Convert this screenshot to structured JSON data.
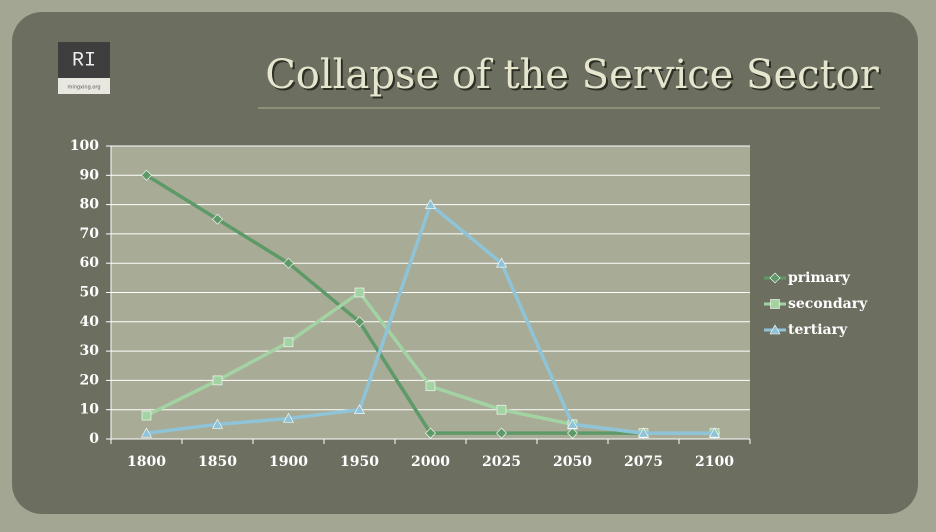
{
  "logo": {
    "mark": "RI",
    "caption": "mingxing.org"
  },
  "chart_data": {
    "type": "line",
    "title": "Collapse of the Service Sector",
    "categories": [
      "1800",
      "1850",
      "1900",
      "1950",
      "2000",
      "2025",
      "2050",
      "2075",
      "2100"
    ],
    "series": [
      {
        "name": "primary",
        "color": "#5e9a68",
        "marker": "diamond",
        "values": [
          90,
          75,
          60,
          40,
          2,
          2,
          2,
          2,
          2
        ]
      },
      {
        "name": "secondary",
        "color": "#a3d3a3",
        "marker": "square",
        "values": [
          8,
          20,
          33,
          50,
          18,
          10,
          5,
          2,
          2
        ]
      },
      {
        "name": "tertiary",
        "color": "#8fc4d8",
        "marker": "triangle",
        "values": [
          2,
          5,
          7,
          10,
          80,
          60,
          5,
          2,
          2
        ]
      }
    ],
    "ylim": [
      0,
      100
    ],
    "yticks": [
      0,
      10,
      20,
      30,
      40,
      50,
      60,
      70,
      80,
      90,
      100
    ],
    "grid": true,
    "legend": "right"
  }
}
